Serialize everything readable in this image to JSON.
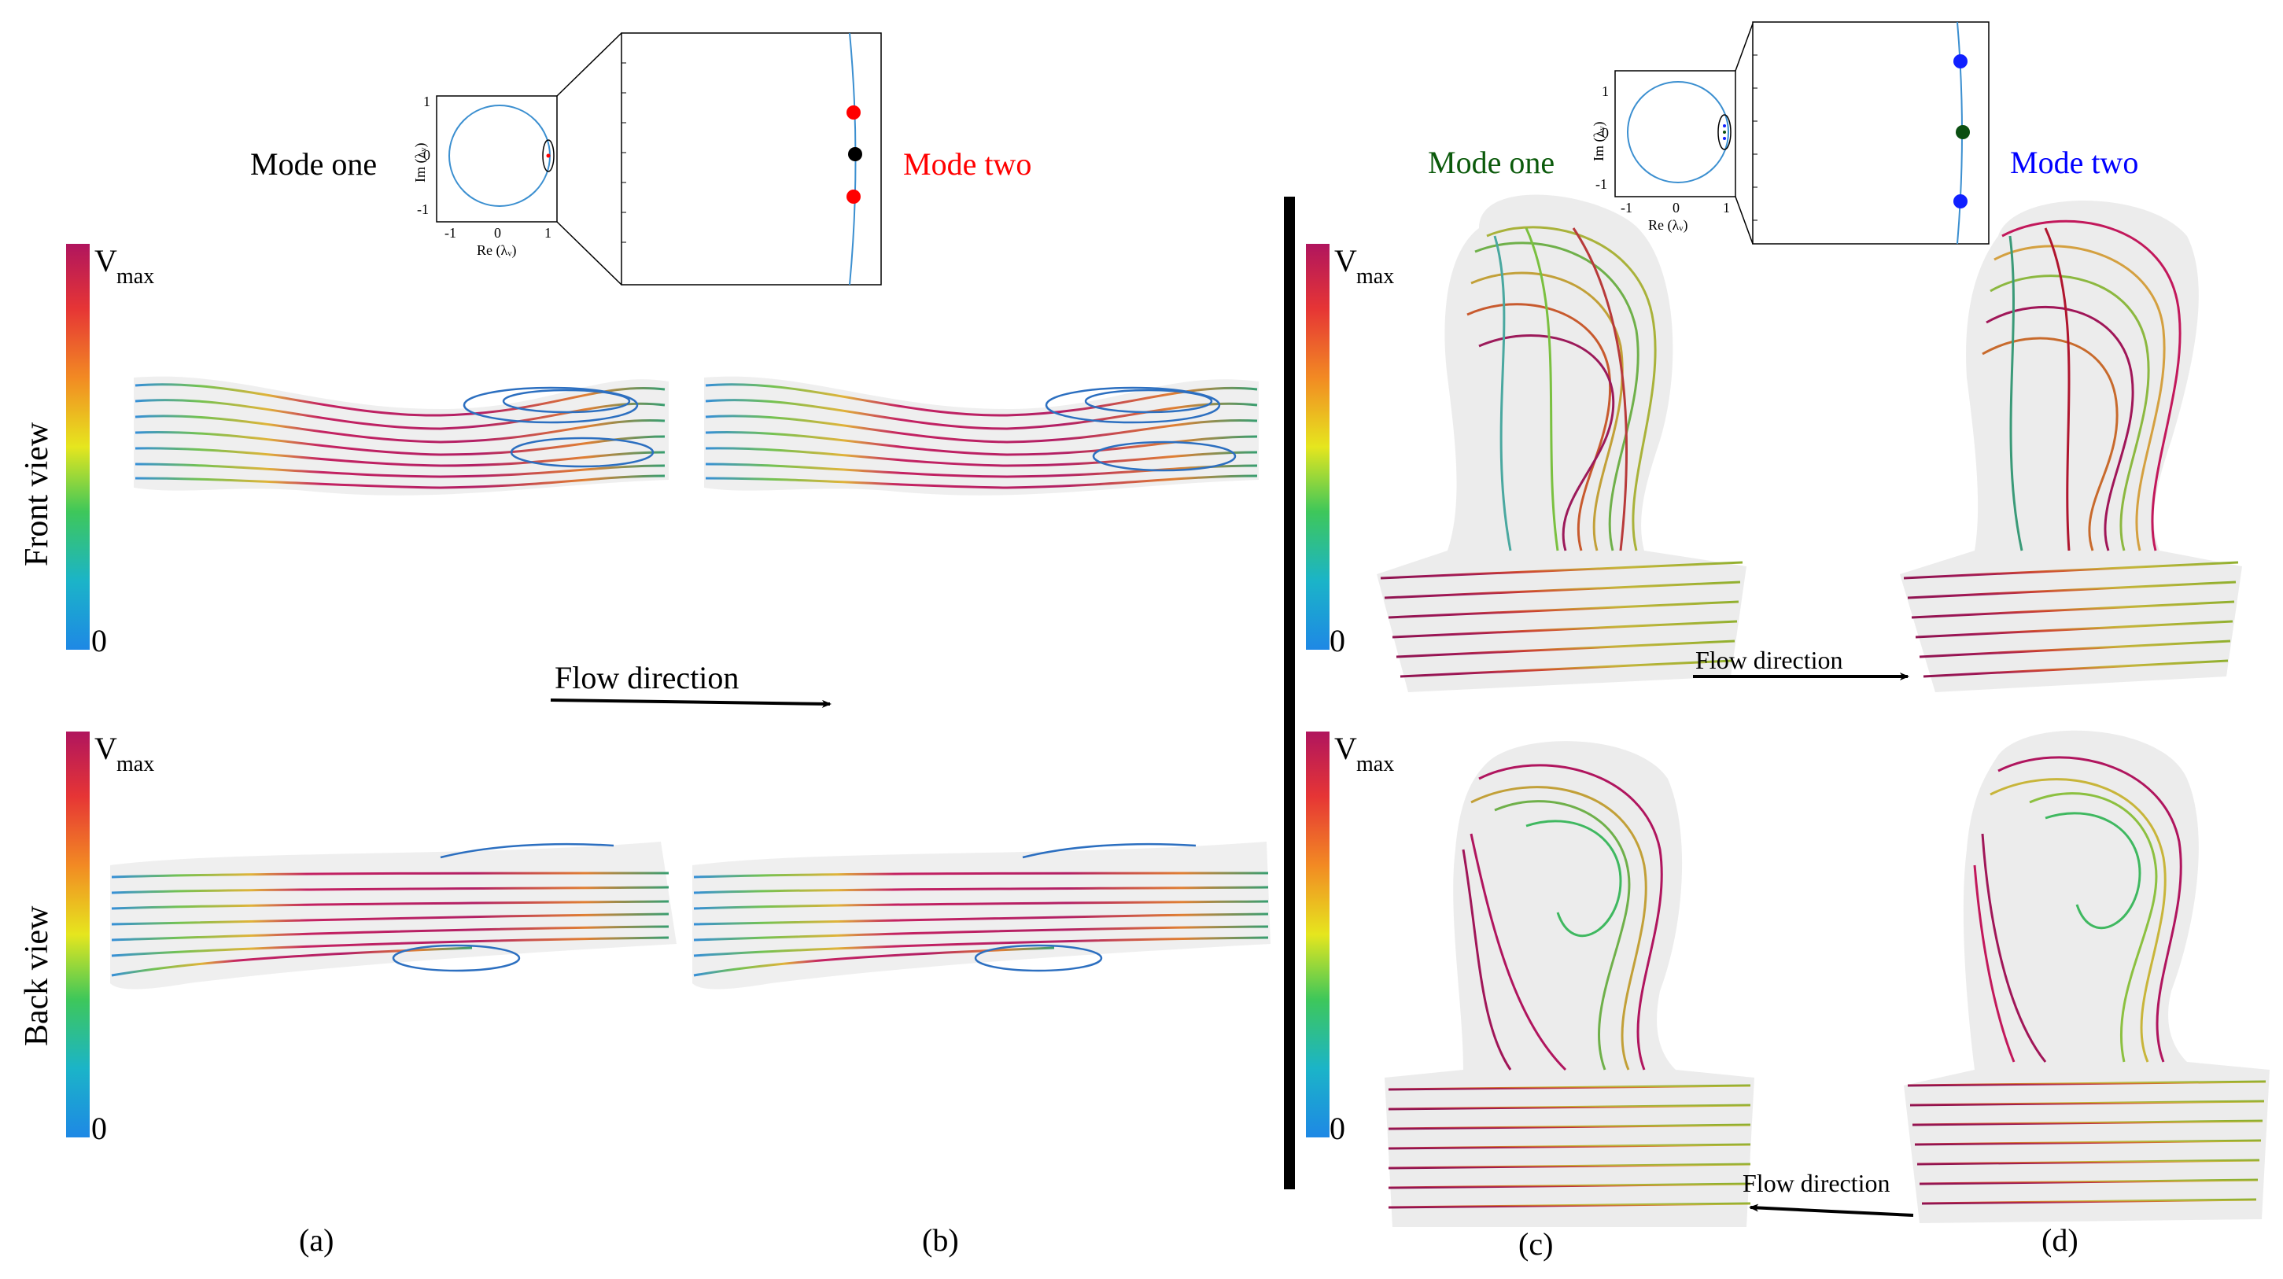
{
  "colors": {
    "mode_one_left": "#000000",
    "mode_two_left": "#ff0000",
    "mode_one_right": "#0b5a0b",
    "mode_two_right": "#0000ff",
    "colorbar": [
      "#1e88e5",
      "#1bb4c8",
      "#3ec75a",
      "#e6e61e",
      "#f28a23",
      "#e63535",
      "#b0155e"
    ],
    "eig_circle": "#3b8fd0",
    "pt_black": "#000000",
    "pt_red": "#ff0000",
    "pt_green": "#0b4f12",
    "pt_blue": "#1020ff"
  },
  "left_panel": {
    "mode_one_label": "Mode one",
    "mode_two_label": "Mode two",
    "row_front_label": "Front view",
    "row_back_label": "Back view",
    "flow_direction_label": "Flow direction",
    "sub_a": "(a)",
    "sub_b": "(b)",
    "eig_inset": {
      "xlabel": "Re (λᵥ)",
      "ylabel": "Im (λᵥ)",
      "xticks": [
        "-1",
        "0",
        "1"
      ],
      "yticks": [
        "1",
        "0",
        "-1"
      ]
    }
  },
  "right_panel": {
    "mode_one_label": "Mode one",
    "mode_two_label": "Mode two",
    "flow_direction_top": "Flow direction",
    "flow_direction_bottom": "Flow direction",
    "sub_c": "(c)",
    "sub_d": "(d)",
    "eig_inset": {
      "xlabel": "Re (λᵥ)",
      "ylabel": "Im (λᵥ)",
      "xticks": [
        "-1",
        "0",
        "1"
      ],
      "yticks": [
        "1",
        "0",
        "-1"
      ]
    }
  },
  "colorbars": {
    "max_label": "V",
    "max_sub": "max",
    "min_label": "0"
  }
}
